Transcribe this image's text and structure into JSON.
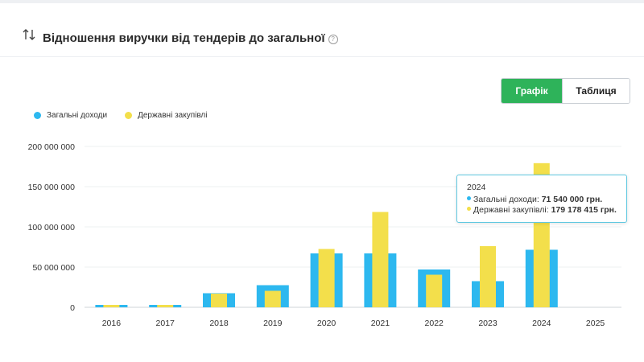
{
  "header": {
    "title": "Відношення виручки від тендерів до загальної",
    "help_icon": "question-circle-icon",
    "sort_icon": "sort-arrows-icon"
  },
  "toggle": {
    "graph_label": "Графік",
    "table_label": "Таблиця",
    "active": "graph",
    "active_color": "#2eb35a"
  },
  "tooltip": {
    "year": "2024",
    "rows": [
      {
        "label": "Загальні доходи:",
        "value": "71 540 000 грн.",
        "color": "#2db8ef"
      },
      {
        "label": "Державні закупівлі:",
        "value": "179 178 415 грн.",
        "color": "#f3df4b"
      }
    ]
  },
  "chart_data": {
    "type": "bar",
    "categories": [
      "2016",
      "2017",
      "2018",
      "2019",
      "2020",
      "2021",
      "2022",
      "2023",
      "2024",
      "2025"
    ],
    "series": [
      {
        "name": "Загальні доходи",
        "color": "#2db8ef",
        "values": [
          3000000,
          3000000,
          17500000,
          27500000,
          67000000,
          67000000,
          47000000,
          32500000,
          71540000,
          0
        ]
      },
      {
        "name": "Державні закупівлі",
        "color": "#f3df4b",
        "values": [
          3000000,
          3000000,
          17000000,
          20500000,
          72500000,
          118500000,
          40500000,
          76000000,
          179178415,
          0
        ]
      }
    ],
    "y_ticks": [
      "0",
      "50 000 000",
      "100 000 000",
      "150 000 000",
      "200 000 000"
    ],
    "ylim": [
      0,
      200000000
    ],
    "grid": true,
    "legend": "top-left"
  }
}
